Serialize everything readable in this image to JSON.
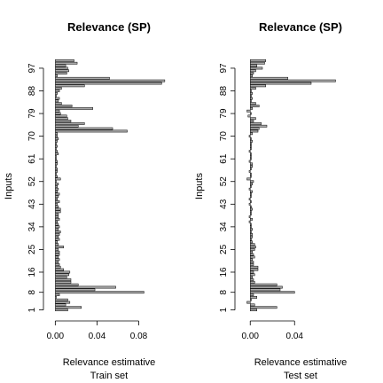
{
  "chart_data": [
    {
      "type": "bar",
      "orientation": "horizontal",
      "title": "Relevance (SP)",
      "xlabel": "Relevance estimative",
      "xlabel2": "Train set",
      "ylabel": "Inputs",
      "xlim": [
        -0.002,
        0.1
      ],
      "xticks": [
        0.0,
        0.04,
        0.08
      ],
      "xtick_labels": [
        "0.00",
        "0.04",
        "0.08"
      ],
      "yticks": [
        1,
        8,
        16,
        25,
        34,
        43,
        52,
        61,
        70,
        79,
        88,
        97
      ],
      "ytick_labels": [
        "1",
        "8",
        "16",
        "25",
        "34",
        "43",
        "52",
        "61",
        "70",
        "79",
        "88",
        "97"
      ],
      "n_inputs": 100,
      "bar_color": "#a9a9a9",
      "values": [
        0.012,
        0.025,
        0.01,
        0.014,
        0.012,
        0.001,
        0.004,
        0.085,
        0.038,
        0.058,
        0.022,
        0.015,
        0.015,
        0.011,
        0.013,
        0.014,
        0.008,
        0.005,
        0.004,
        0.003,
        0.004,
        0.003,
        0.004,
        0.004,
        0.003,
        0.008,
        0.003,
        0.002,
        0.004,
        0.003,
        0.004,
        0.005,
        0.003,
        0.004,
        0.003,
        0.002,
        0.004,
        0.003,
        0.003,
        0.005,
        0.005,
        0.003,
        0.002,
        0.004,
        0.002,
        0.003,
        0.004,
        0.002,
        0.003,
        0.002,
        0.003,
        0.001,
        0.005,
        0.002,
        0.001,
        0.002,
        0.002,
        0.001,
        0.002,
        0.002,
        0.001,
        0.001,
        0.003,
        0.002,
        0.001,
        0.002,
        0.001,
        0.002,
        0.003,
        0.002,
        0.002,
        0.069,
        0.055,
        0.022,
        0.028,
        0.015,
        0.012,
        0.011,
        0.005,
        0.004,
        0.036,
        0.016,
        0.006,
        0.003,
        0.004,
        0.001,
        0.002,
        0.004,
        0.006,
        0.028,
        0.102,
        0.105,
        0.052,
        0.002,
        0.011,
        0.013,
        0.012,
        0.01,
        0.021,
        0.018
      ]
    },
    {
      "type": "bar",
      "orientation": "horizontal",
      "title": "Relevance (SP)",
      "xlabel": "Relevance estimative",
      "xlabel2": "Test set",
      "ylabel": "Inputs",
      "xlim": [
        -0.005,
        0.075
      ],
      "xticks": [
        0.0,
        0.04
      ],
      "xtick_labels": [
        "0.00",
        "0.04"
      ],
      "yticks": [
        1,
        8,
        16,
        25,
        34,
        43,
        52,
        61,
        70,
        79,
        88,
        97
      ],
      "ytick_labels": [
        "1",
        "8",
        "16",
        "25",
        "34",
        "43",
        "52",
        "61",
        "70",
        "79",
        "88",
        "97"
      ],
      "n_inputs": 100,
      "bar_color": "#a9a9a9",
      "values": [
        0.006,
        0.024,
        0.004,
        -0.003,
        0.001,
        0.006,
        0.003,
        0.04,
        0.027,
        0.029,
        0.024,
        0.004,
        0.003,
        0.002,
        0.004,
        0.003,
        0.007,
        0.007,
        0.003,
        0.003,
        0.002,
        0.004,
        0.003,
        0.002,
        0.004,
        0.005,
        0.004,
        0.002,
        0.001,
        0.002,
        0.002,
        0.001,
        0.002,
        0.001,
        0.001,
        -0.001,
        0.002,
        -0.001,
        0.001,
        0.001,
        0.002,
        0.001,
        -0.001,
        0.001,
        -0.001,
        0.001,
        0.001,
        0.002,
        -0.001,
        0.001,
        0.002,
        0.003,
        -0.003,
        0.001,
        0.001,
        -0.001,
        0.001,
        0.002,
        0.002,
        -0.001,
        0.001,
        0.001,
        0.001,
        -0.001,
        0.001,
        0.001,
        0.001,
        0.002,
        0.001,
        -0.001,
        0.002,
        0.007,
        0.008,
        0.015,
        0.01,
        0.003,
        0.005,
        -0.002,
        0.001,
        -0.003,
        0.002,
        0.008,
        0.005,
        0.001,
        0.002,
        0.001,
        0.002,
        0.001,
        0.005,
        0.014,
        0.055,
        0.077,
        0.034,
        0.002,
        0.003,
        0.005,
        0.011,
        0.006,
        0.013,
        0.014
      ]
    }
  ]
}
